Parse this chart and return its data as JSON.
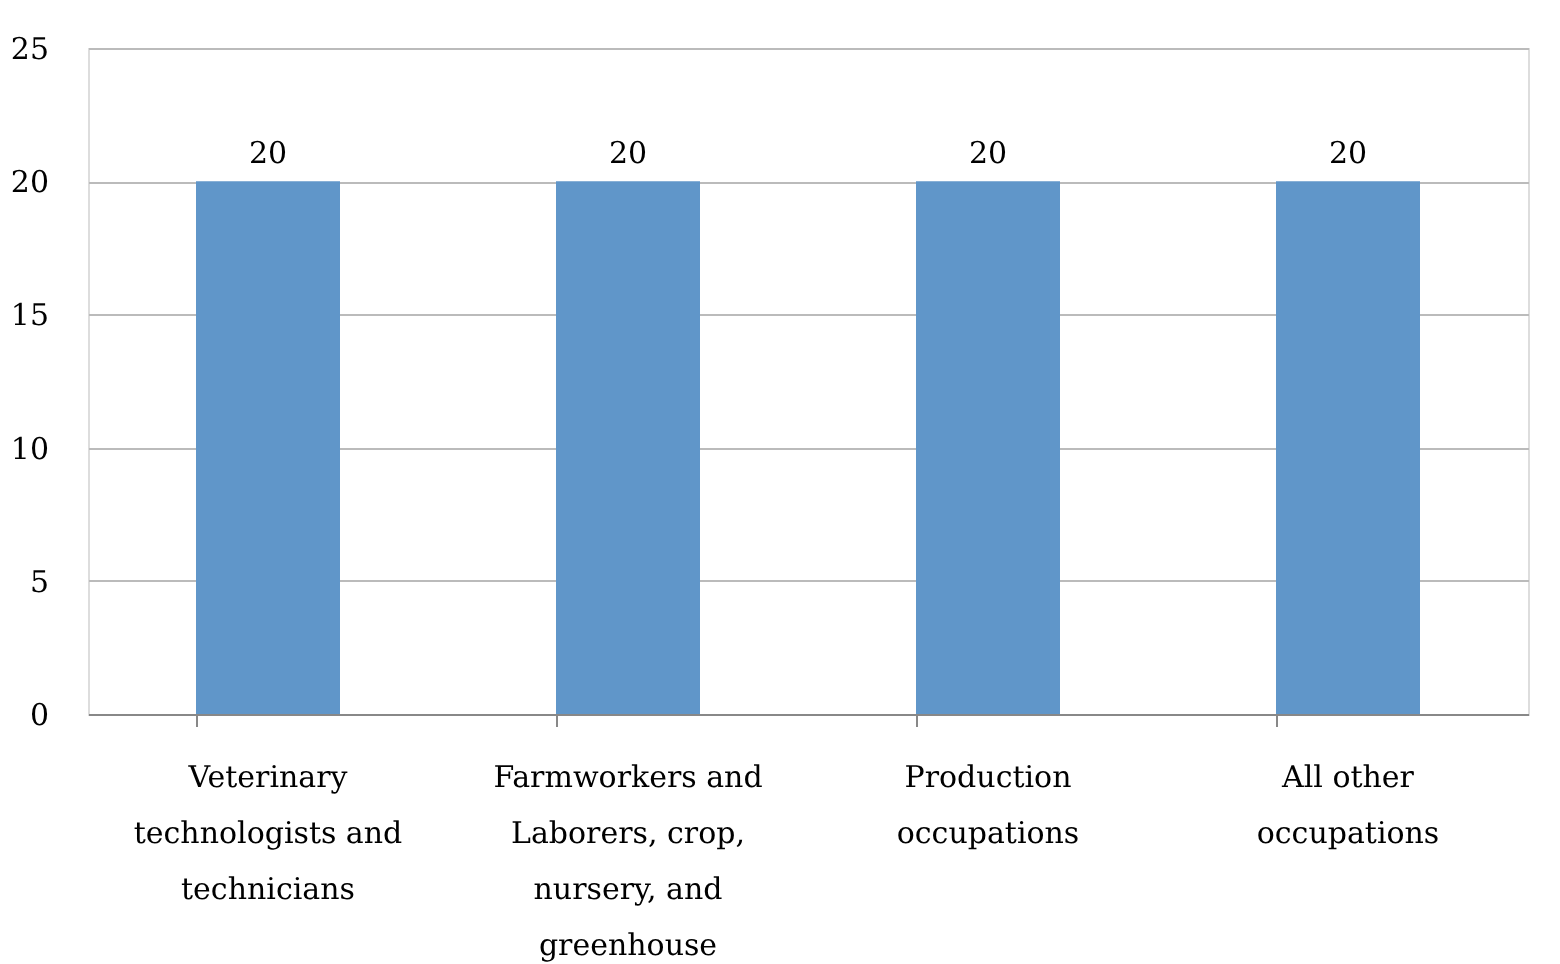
{
  "chart_data": {
    "type": "bar",
    "categories": [
      "Veterinary technologists and technicians",
      "Farmworkers and Laborers, crop, nursery, and greenhouse",
      "Production occupations",
      "All other occupations"
    ],
    "values": [
      20,
      20,
      20,
      20
    ],
    "color": "#6096c9",
    "ylim": [
      0,
      25
    ],
    "yticks": [
      0,
      5,
      10,
      15,
      20,
      25
    ],
    "grid": "y",
    "data_labels": true
  }
}
